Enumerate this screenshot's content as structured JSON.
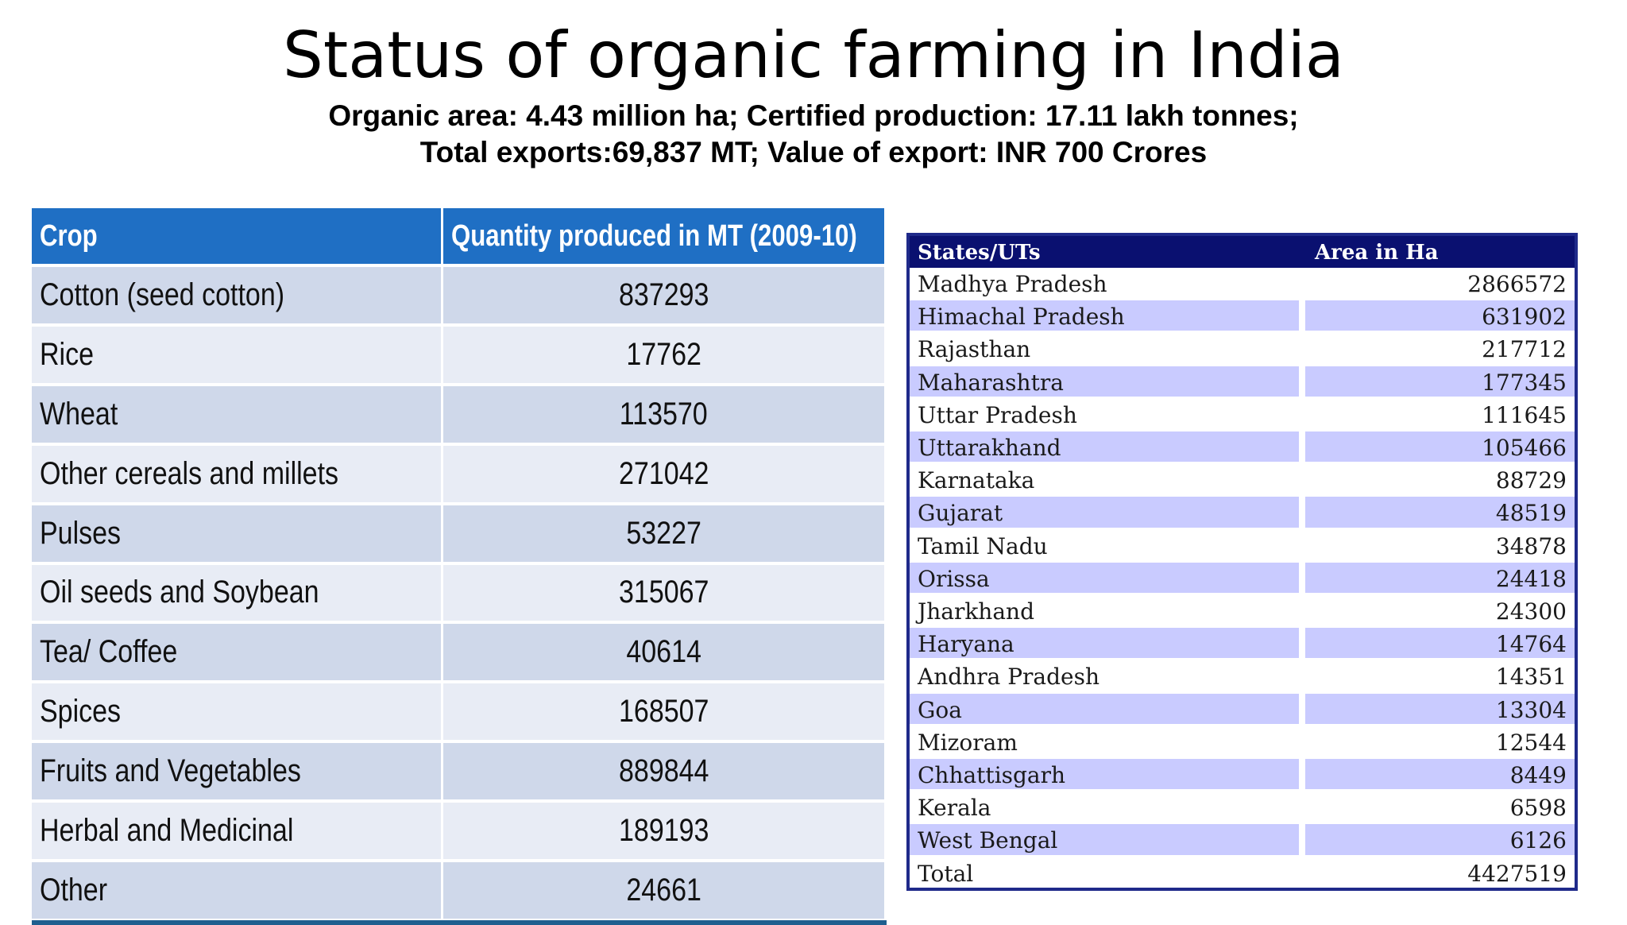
{
  "title": "Status of organic farming in India",
  "subtitle_line1": "Organic area: 4.43 million ha; Certified production: 17.11 lakh tonnes;",
  "subtitle_line2": "Total exports:69,837 MT; Value of export: INR 700 Crores",
  "crop_table": {
    "headers": [
      "Crop",
      "Quantity produced in MT (2009-10)"
    ],
    "rows": [
      [
        "Cotton (seed cotton)",
        "837293"
      ],
      [
        "Rice",
        "17762"
      ],
      [
        "Wheat",
        "113570"
      ],
      [
        "Other cereals and millets",
        "271042"
      ],
      [
        "Pulses",
        "53227"
      ],
      [
        "Oil seeds and Soybean",
        "315067"
      ],
      [
        "Tea/ Coffee",
        "40614"
      ],
      [
        "Spices",
        "168507"
      ],
      [
        "Fruits and Vegetables",
        "889844"
      ],
      [
        "Herbal and Medicinal",
        "189193"
      ],
      [
        "Other",
        "24661"
      ]
    ]
  },
  "state_table": {
    "headers": [
      "States/UTs",
      "Area in Ha"
    ],
    "rows": [
      [
        "Madhya Pradesh",
        "2866572"
      ],
      [
        "Himachal Pradesh",
        "631902"
      ],
      [
        "Rajasthan",
        "217712"
      ],
      [
        "Maharashtra",
        "177345"
      ],
      [
        "Uttar Pradesh",
        "111645"
      ],
      [
        "Uttarakhand",
        "105466"
      ],
      [
        "Karnataka",
        "88729"
      ],
      [
        "Gujarat",
        "48519"
      ],
      [
        "Tamil Nadu",
        "34878"
      ],
      [
        "Orissa",
        "24418"
      ],
      [
        "Jharkhand",
        "24300"
      ],
      [
        "Haryana",
        "14764"
      ],
      [
        "Andhra Pradesh",
        "14351"
      ],
      [
        "Goa",
        "13304"
      ],
      [
        "Mizoram",
        "12544"
      ],
      [
        "Chhattisgarh",
        "8449"
      ],
      [
        "Kerala",
        "6598"
      ],
      [
        "West Bengal",
        "6126"
      ],
      [
        "Total",
        "4427519"
      ]
    ]
  },
  "colors": {
    "crop_header_bg": "#1f6fc4",
    "crop_row_dark": "#cfd8ea",
    "crop_row_light": "#e8ecf5",
    "state_header_bg": "#0a1070",
    "state_row_alt": "#c9cbff",
    "state_border": "#1f2a8a"
  }
}
